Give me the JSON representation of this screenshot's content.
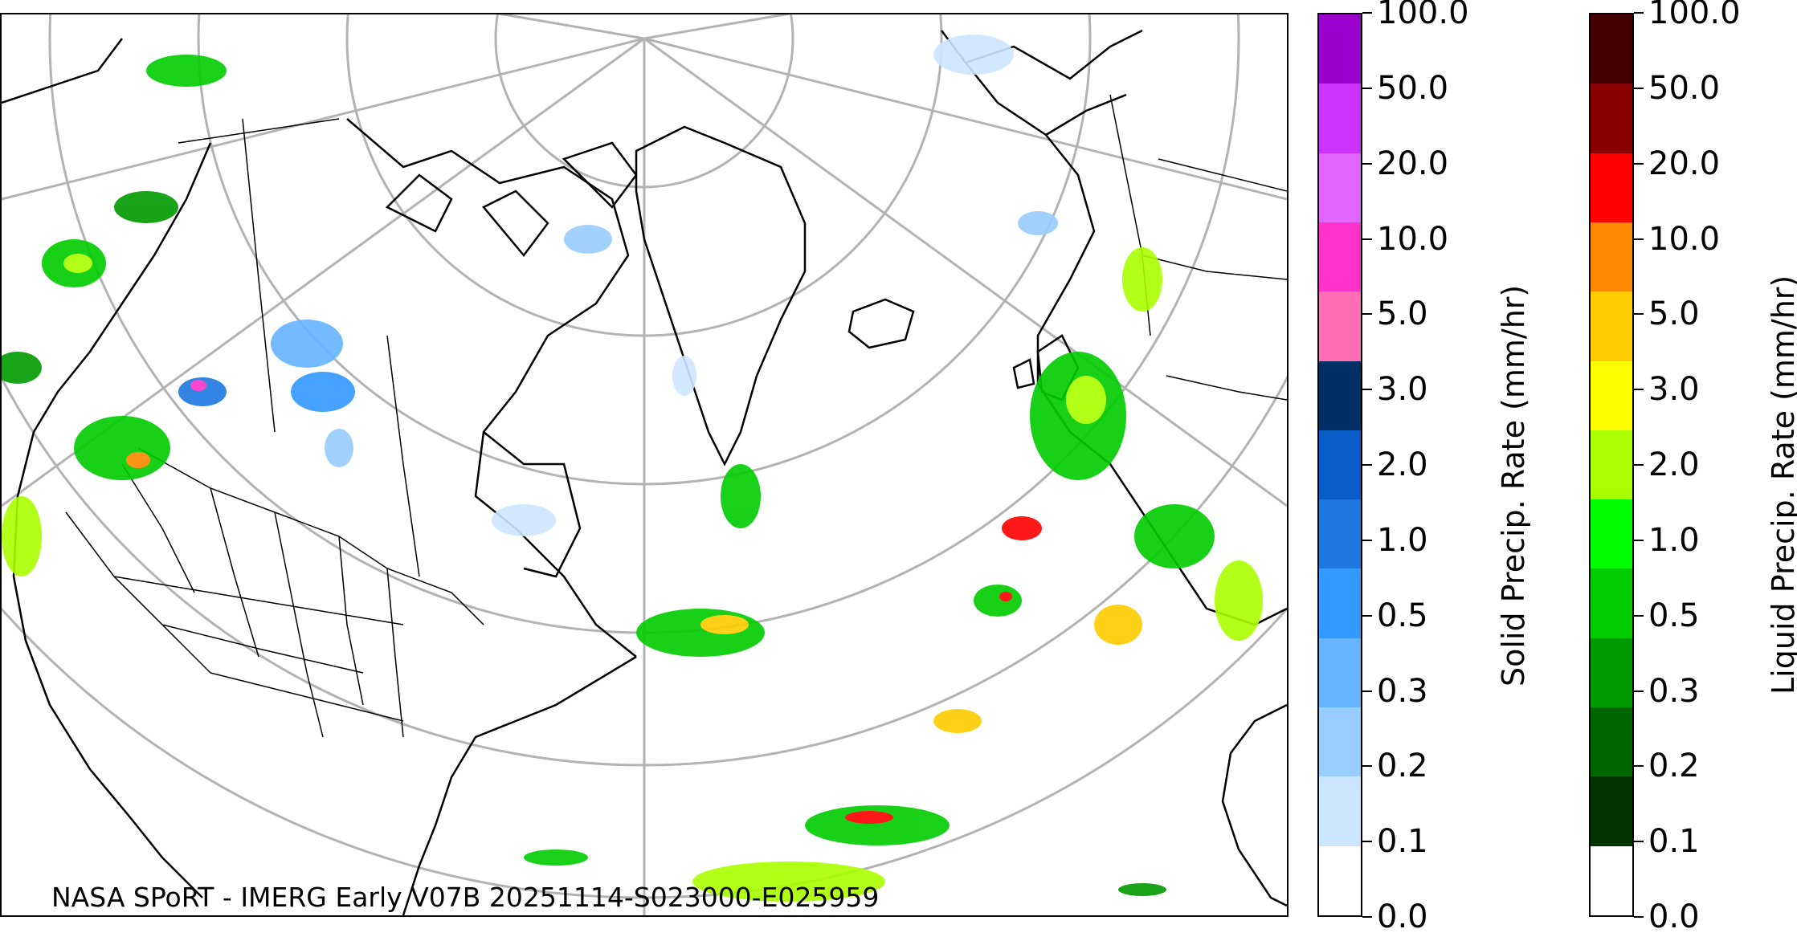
{
  "map": {
    "credit": "NASA SPoRT - IMERG Early V07B 20251114-S023000-E025959",
    "features": [
      "north-america-coastline",
      "greenland",
      "iceland",
      "europe",
      "north-africa",
      "us-state-borders",
      "canada-province-borders",
      "graticule"
    ]
  },
  "colorbars": [
    {
      "label": "Solid Precip. Rate (mm/hr)",
      "ticks": [
        "0.0",
        "0.1",
        "0.2",
        "0.3",
        "0.5",
        "1.0",
        "2.0",
        "3.0",
        "5.0",
        "10.0",
        "20.0",
        "50.0",
        "100.0"
      ],
      "colors": [
        "#ffffff",
        "#cce6ff",
        "#99ccff",
        "#66b3ff",
        "#3399ff",
        "#1f78e0",
        "#0a5cc8",
        "#002f66",
        "#ff6eb4",
        "#ff33cc",
        "#e066ff",
        "#cc33ff",
        "#9900cc"
      ]
    },
    {
      "label": "Liquid Precip. Rate (mm/hr)",
      "ticks": [
        "0.0",
        "0.1",
        "0.2",
        "0.3",
        "0.5",
        "1.0",
        "2.0",
        "3.0",
        "5.0",
        "10.0",
        "20.0",
        "50.0",
        "100.0"
      ],
      "colors": [
        "#ffffff",
        "#003300",
        "#006600",
        "#009900",
        "#00cc00",
        "#00ff00",
        "#aaff00",
        "#ffff00",
        "#ffcc00",
        "#ff8800",
        "#ff0000",
        "#880000",
        "#440000"
      ]
    }
  ]
}
